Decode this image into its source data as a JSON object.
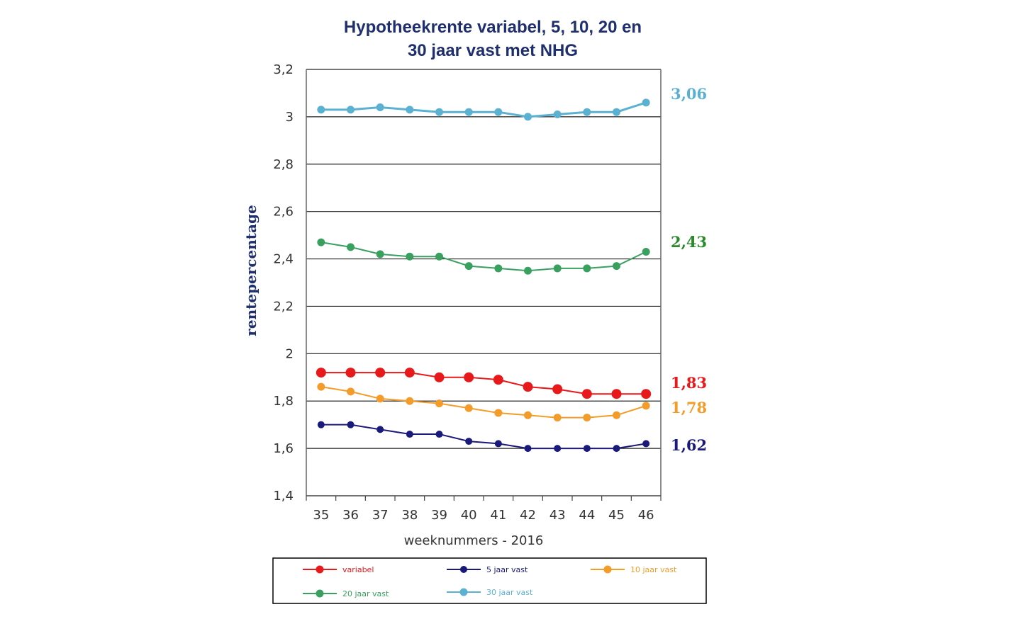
{
  "chart_data": {
    "type": "line",
    "title": [
      "Hypotheekrente variabel, 5, 10, 20 en",
      "30 jaar vast met NHG"
    ],
    "xlabel": "weeknummers - 2016",
    "ylabel": "rentepercentage",
    "x": [
      35,
      36,
      37,
      38,
      39,
      40,
      41,
      42,
      43,
      44,
      45,
      46
    ],
    "ylim": [
      1.4,
      3.2
    ],
    "yticks": [
      1.4,
      1.6,
      1.8,
      2.0,
      2.2,
      2.4,
      2.6,
      2.8,
      3.0,
      3.2
    ],
    "ytick_labels": [
      "1,4",
      "1,6",
      "1,8",
      "2",
      "2,2",
      "2,4",
      "2,6",
      "2,8",
      "3",
      "3,2"
    ],
    "grid": true,
    "legend_position": "bottom",
    "series": [
      {
        "name": "variabel",
        "color": "#e8191a",
        "values": [
          1.92,
          1.92,
          1.92,
          1.92,
          1.9,
          1.9,
          1.89,
          1.86,
          1.85,
          1.83,
          1.83,
          1.83
        ],
        "end_label": "1,83"
      },
      {
        "name": "5 jaar vast",
        "color": "#1a1a7a",
        "values": [
          1.7,
          1.7,
          1.68,
          1.66,
          1.66,
          1.63,
          1.62,
          1.6,
          1.6,
          1.6,
          1.6,
          1.62
        ],
        "end_label": "1,62"
      },
      {
        "name": "10 jaar vast",
        "color": "#f39c2a",
        "values": [
          1.86,
          1.84,
          1.81,
          1.8,
          1.79,
          1.77,
          1.75,
          1.74,
          1.73,
          1.73,
          1.74,
          1.78
        ],
        "end_label": "1,78"
      },
      {
        "name": "20 jaar vast",
        "color": "#3aa060",
        "values": [
          2.47,
          2.45,
          2.42,
          2.41,
          2.41,
          2.37,
          2.36,
          2.35,
          2.36,
          2.36,
          2.37,
          2.43
        ],
        "end_label": "2,43"
      },
      {
        "name": "30 jaar vast",
        "color": "#5bb1d2",
        "values": [
          3.03,
          3.03,
          3.04,
          3.03,
          3.02,
          3.02,
          3.02,
          3.0,
          3.01,
          3.02,
          3.02,
          3.06
        ],
        "end_label": "3,06"
      }
    ]
  },
  "end_label_colors": {
    "variabel": "#e8191a",
    "5 jaar vast": "#1a1a7a",
    "10 jaar vast": "#f39c2a",
    "20 jaar vast": "#2a8a2a",
    "30 jaar vast": "#5bb1d2"
  }
}
